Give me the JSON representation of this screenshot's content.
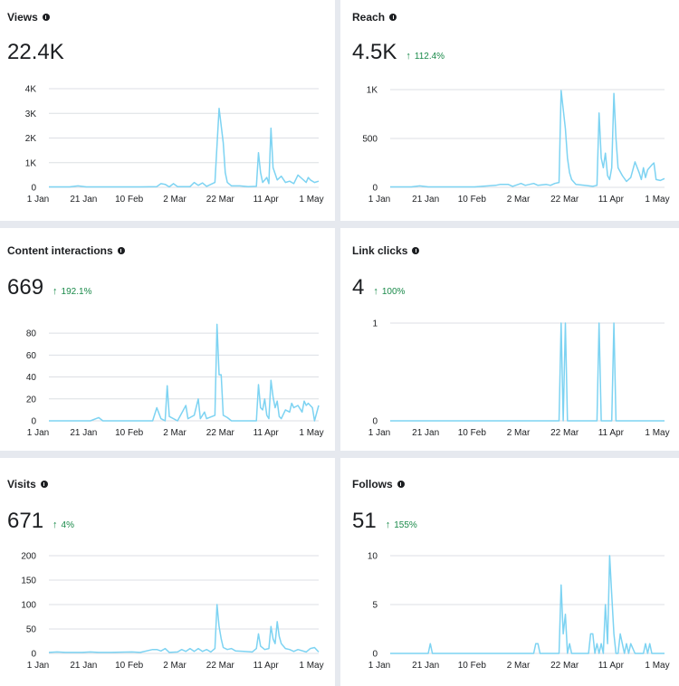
{
  "cards": [
    {
      "id": "views",
      "title": "Views",
      "value": "22.4K",
      "delta": "",
      "chart_data": {
        "type": "line",
        "x_ticks": [
          "1 Jan",
          "21 Jan",
          "10 Feb",
          "2 Mar",
          "22 Mar",
          "11 Apr",
          "1 May"
        ],
        "y_ticks": [
          0,
          1000,
          2000,
          3000,
          4000
        ],
        "y_tick_labels": [
          "0",
          "1K",
          "2K",
          "3K",
          "4K"
        ],
        "ylim": [
          0,
          4000
        ],
        "x_range": [
          0,
          130
        ],
        "points": [
          [
            0,
            20
          ],
          [
            10,
            20
          ],
          [
            14,
            60
          ],
          [
            18,
            20
          ],
          [
            30,
            20
          ],
          [
            44,
            20
          ],
          [
            52,
            30
          ],
          [
            54,
            150
          ],
          [
            56,
            120
          ],
          [
            58,
            20
          ],
          [
            60,
            150
          ],
          [
            62,
            30
          ],
          [
            68,
            30
          ],
          [
            70,
            200
          ],
          [
            72,
            80
          ],
          [
            74,
            180
          ],
          [
            76,
            40
          ],
          [
            80,
            200
          ],
          [
            82,
            3200
          ],
          [
            84,
            1800
          ],
          [
            85,
            600
          ],
          [
            86,
            200
          ],
          [
            88,
            60
          ],
          [
            92,
            60
          ],
          [
            96,
            30
          ],
          [
            100,
            40
          ],
          [
            101,
            1400
          ],
          [
            102,
            600
          ],
          [
            103,
            200
          ],
          [
            105,
            400
          ],
          [
            106,
            150
          ],
          [
            107,
            2400
          ],
          [
            108,
            800
          ],
          [
            110,
            300
          ],
          [
            112,
            450
          ],
          [
            114,
            200
          ],
          [
            116,
            250
          ],
          [
            118,
            150
          ],
          [
            120,
            500
          ],
          [
            122,
            350
          ],
          [
            124,
            200
          ],
          [
            125,
            400
          ],
          [
            126,
            300
          ],
          [
            128,
            200
          ],
          [
            130,
            250
          ]
        ]
      }
    },
    {
      "id": "reach",
      "title": "Reach",
      "value": "4.5K",
      "delta": "112.4%",
      "chart_data": {
        "type": "line",
        "x_ticks": [
          "1 Jan",
          "21 Jan",
          "10 Feb",
          "2 Mar",
          "22 Mar",
          "11 Apr",
          "1 May"
        ],
        "y_ticks": [
          0,
          500,
          1000
        ],
        "y_tick_labels": [
          "0",
          "500",
          "1K"
        ],
        "ylim": [
          0,
          1000
        ],
        "x_range": [
          0,
          130
        ],
        "points": [
          [
            0,
            5
          ],
          [
            10,
            5
          ],
          [
            14,
            15
          ],
          [
            18,
            5
          ],
          [
            30,
            5
          ],
          [
            40,
            5
          ],
          [
            50,
            20
          ],
          [
            52,
            30
          ],
          [
            56,
            30
          ],
          [
            58,
            10
          ],
          [
            62,
            40
          ],
          [
            64,
            20
          ],
          [
            68,
            40
          ],
          [
            70,
            20
          ],
          [
            74,
            30
          ],
          [
            76,
            20
          ],
          [
            78,
            40
          ],
          [
            80,
            50
          ],
          [
            81,
            990
          ],
          [
            82,
            800
          ],
          [
            83,
            600
          ],
          [
            84,
            300
          ],
          [
            85,
            150
          ],
          [
            86,
            80
          ],
          [
            88,
            30
          ],
          [
            92,
            20
          ],
          [
            96,
            10
          ],
          [
            98,
            20
          ],
          [
            99,
            760
          ],
          [
            100,
            300
          ],
          [
            101,
            200
          ],
          [
            102,
            350
          ],
          [
            103,
            120
          ],
          [
            104,
            80
          ],
          [
            105,
            200
          ],
          [
            106,
            960
          ],
          [
            107,
            500
          ],
          [
            108,
            200
          ],
          [
            110,
            120
          ],
          [
            112,
            60
          ],
          [
            114,
            100
          ],
          [
            116,
            260
          ],
          [
            118,
            150
          ],
          [
            119,
            80
          ],
          [
            120,
            200
          ],
          [
            121,
            100
          ],
          [
            122,
            180
          ],
          [
            124,
            230
          ],
          [
            125,
            250
          ],
          [
            126,
            80
          ],
          [
            128,
            70
          ],
          [
            130,
            90
          ]
        ]
      }
    },
    {
      "id": "content-interactions",
      "title": "Content interactions",
      "value": "669",
      "delta": "192.1%",
      "chart_data": {
        "type": "line",
        "x_ticks": [
          "1 Jan",
          "21 Jan",
          "10 Feb",
          "2 Mar",
          "22 Mar",
          "11 Apr",
          "1 May"
        ],
        "y_ticks": [
          0,
          20,
          40,
          60,
          80
        ],
        "y_tick_labels": [
          "0",
          "20",
          "40",
          "60",
          "80"
        ],
        "ylim": [
          0,
          90
        ],
        "x_range": [
          0,
          130
        ],
        "points": [
          [
            0,
            0
          ],
          [
            20,
            0
          ],
          [
            24,
            3
          ],
          [
            26,
            0
          ],
          [
            40,
            0
          ],
          [
            50,
            0
          ],
          [
            52,
            12
          ],
          [
            54,
            2
          ],
          [
            56,
            0
          ],
          [
            57,
            32
          ],
          [
            58,
            4
          ],
          [
            62,
            0
          ],
          [
            66,
            14
          ],
          [
            67,
            2
          ],
          [
            70,
            5
          ],
          [
            72,
            20
          ],
          [
            73,
            2
          ],
          [
            75,
            8
          ],
          [
            76,
            2
          ],
          [
            80,
            5
          ],
          [
            81,
            88
          ],
          [
            82,
            42
          ],
          [
            83,
            42
          ],
          [
            84,
            5
          ],
          [
            86,
            3
          ],
          [
            88,
            0
          ],
          [
            94,
            0
          ],
          [
            100,
            0
          ],
          [
            101,
            33
          ],
          [
            102,
            12
          ],
          [
            103,
            10
          ],
          [
            104,
            20
          ],
          [
            105,
            5
          ],
          [
            106,
            2
          ],
          [
            107,
            37
          ],
          [
            108,
            22
          ],
          [
            109,
            12
          ],
          [
            110,
            18
          ],
          [
            111,
            4
          ],
          [
            112,
            2
          ],
          [
            114,
            10
          ],
          [
            116,
            8
          ],
          [
            117,
            16
          ],
          [
            118,
            12
          ],
          [
            120,
            14
          ],
          [
            122,
            8
          ],
          [
            123,
            18
          ],
          [
            124,
            14
          ],
          [
            125,
            16
          ],
          [
            127,
            12
          ],
          [
            128,
            0
          ],
          [
            130,
            14
          ]
        ]
      }
    },
    {
      "id": "link-clicks",
      "title": "Link clicks",
      "value": "4",
      "delta": "100%",
      "chart_data": {
        "type": "line",
        "x_ticks": [
          "1 Jan",
          "21 Jan",
          "10 Feb",
          "2 Mar",
          "22 Mar",
          "11 Apr",
          "1 May"
        ],
        "y_ticks": [
          0,
          1
        ],
        "y_tick_labels": [
          "0",
          "1"
        ],
        "ylim": [
          0,
          1
        ],
        "x_range": [
          0,
          130
        ],
        "points": [
          [
            0,
            0
          ],
          [
            80,
            0
          ],
          [
            81,
            1
          ],
          [
            82,
            0
          ],
          [
            83,
            1
          ],
          [
            84,
            0
          ],
          [
            98,
            0
          ],
          [
            99,
            1
          ],
          [
            100,
            0
          ],
          [
            105,
            0
          ],
          [
            106,
            1
          ],
          [
            107,
            0
          ],
          [
            130,
            0
          ]
        ]
      }
    },
    {
      "id": "visits",
      "title": "Visits",
      "value": "671",
      "delta": "4%",
      "chart_data": {
        "type": "line",
        "x_ticks": [
          "1 Jan",
          "21 Jan",
          "10 Feb",
          "2 Mar",
          "22 Mar",
          "11 Apr",
          "1 May"
        ],
        "y_ticks": [
          0,
          50,
          100,
          150,
          200
        ],
        "y_tick_labels": [
          "0",
          "50",
          "100",
          "150",
          "200"
        ],
        "ylim": [
          0,
          200
        ],
        "x_range": [
          0,
          130
        ],
        "points": [
          [
            0,
            2
          ],
          [
            4,
            3
          ],
          [
            8,
            2
          ],
          [
            16,
            2
          ],
          [
            20,
            3
          ],
          [
            24,
            2
          ],
          [
            30,
            2
          ],
          [
            40,
            3
          ],
          [
            44,
            2
          ],
          [
            50,
            8
          ],
          [
            52,
            8
          ],
          [
            54,
            5
          ],
          [
            56,
            10
          ],
          [
            58,
            2
          ],
          [
            62,
            3
          ],
          [
            64,
            8
          ],
          [
            66,
            4
          ],
          [
            68,
            10
          ],
          [
            70,
            4
          ],
          [
            72,
            10
          ],
          [
            74,
            4
          ],
          [
            76,
            8
          ],
          [
            78,
            3
          ],
          [
            80,
            10
          ],
          [
            81,
            100
          ],
          [
            82,
            55
          ],
          [
            83,
            30
          ],
          [
            84,
            12
          ],
          [
            86,
            8
          ],
          [
            88,
            10
          ],
          [
            90,
            5
          ],
          [
            94,
            4
          ],
          [
            98,
            3
          ],
          [
            100,
            10
          ],
          [
            101,
            40
          ],
          [
            102,
            15
          ],
          [
            104,
            8
          ],
          [
            106,
            10
          ],
          [
            107,
            55
          ],
          [
            108,
            30
          ],
          [
            109,
            20
          ],
          [
            110,
            65
          ],
          [
            111,
            35
          ],
          [
            112,
            20
          ],
          [
            114,
            10
          ],
          [
            116,
            8
          ],
          [
            118,
            4
          ],
          [
            120,
            8
          ],
          [
            124,
            3
          ],
          [
            126,
            10
          ],
          [
            128,
            12
          ],
          [
            130,
            3
          ]
        ]
      }
    },
    {
      "id": "follows",
      "title": "Follows",
      "value": "51",
      "delta": "155%",
      "chart_data": {
        "type": "line",
        "x_ticks": [
          "1 Jan",
          "21 Jan",
          "10 Feb",
          "2 Mar",
          "22 Mar",
          "11 Apr",
          "1 May"
        ],
        "y_ticks": [
          0,
          5,
          10
        ],
        "y_tick_labels": [
          "0",
          "5",
          "10"
        ],
        "ylim": [
          0,
          10
        ],
        "x_range": [
          0,
          130
        ],
        "points": [
          [
            0,
            0
          ],
          [
            18,
            0
          ],
          [
            19,
            1
          ],
          [
            20,
            0
          ],
          [
            40,
            0
          ],
          [
            60,
            0
          ],
          [
            68,
            0
          ],
          [
            69,
            1
          ],
          [
            70,
            1
          ],
          [
            71,
            0
          ],
          [
            80,
            0
          ],
          [
            81,
            7
          ],
          [
            82,
            2
          ],
          [
            83,
            4
          ],
          [
            84,
            0
          ],
          [
            85,
            1
          ],
          [
            86,
            0
          ],
          [
            94,
            0
          ],
          [
            95,
            2
          ],
          [
            96,
            2
          ],
          [
            97,
            0
          ],
          [
            98,
            1
          ],
          [
            99,
            0
          ],
          [
            100,
            1
          ],
          [
            101,
            0
          ],
          [
            102,
            5
          ],
          [
            103,
            1
          ],
          [
            104,
            10
          ],
          [
            105,
            6
          ],
          [
            106,
            2
          ],
          [
            107,
            0
          ],
          [
            108,
            0
          ],
          [
            109,
            2
          ],
          [
            110,
            1
          ],
          [
            111,
            0
          ],
          [
            112,
            1
          ],
          [
            113,
            0
          ],
          [
            114,
            1
          ],
          [
            116,
            0
          ],
          [
            120,
            0
          ],
          [
            121,
            1
          ],
          [
            122,
            0
          ],
          [
            123,
            1
          ],
          [
            124,
            0
          ],
          [
            130,
            0
          ]
        ]
      }
    }
  ]
}
